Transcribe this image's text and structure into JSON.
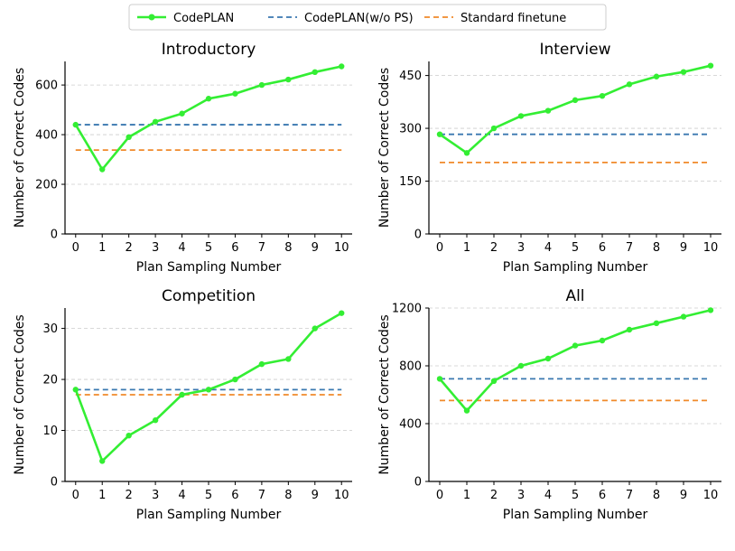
{
  "legend": {
    "placement": "top-center",
    "entries": [
      {
        "label": "CodePLAN",
        "color": "#33ee33",
        "style": "solid-marker"
      },
      {
        "label": "CodePLAN(w/o PS)",
        "color": "#3a78b0",
        "style": "dashed"
      },
      {
        "label": "Standard finetune",
        "color": "#f08a2a",
        "style": "dashed"
      }
    ]
  },
  "chart_data": [
    {
      "type": "line",
      "title": "Introductory",
      "xlabel": "Plan Sampling Number",
      "ylabel": "Number of Correct Codes",
      "x": [
        0,
        1,
        2,
        3,
        4,
        5,
        6,
        7,
        8,
        9,
        10
      ],
      "xticks": [
        "0",
        "1",
        "2",
        "3",
        "4",
        "5",
        "6",
        "7",
        "8",
        "9",
        "10"
      ],
      "yticks": [
        0,
        200,
        400,
        600
      ],
      "ylim": [
        0,
        695
      ],
      "grid": true,
      "series": [
        {
          "name": "CodePLAN",
          "values": [
            440,
            260,
            390,
            452,
            485,
            545,
            565,
            600,
            622,
            652,
            675
          ]
        },
        {
          "name": "CodePLAN(w/o PS)",
          "values": [
            440,
            440,
            440,
            440,
            440,
            440,
            440,
            440,
            440,
            440,
            440
          ]
        },
        {
          "name": "Standard finetune",
          "values": [
            338,
            338,
            338,
            338,
            338,
            338,
            338,
            338,
            338,
            338,
            338
          ]
        }
      ]
    },
    {
      "type": "line",
      "title": "Interview",
      "xlabel": "Plan Sampling Number",
      "ylabel": "Number of Correct Codes",
      "x": [
        0,
        1,
        2,
        3,
        4,
        5,
        6,
        7,
        8,
        9,
        10
      ],
      "xticks": [
        "0",
        "1",
        "2",
        "3",
        "4",
        "5",
        "6",
        "7",
        "8",
        "9",
        "10"
      ],
      "yticks": [
        0,
        150,
        300,
        450
      ],
      "ylim": [
        0,
        490
      ],
      "grid": true,
      "series": [
        {
          "name": "CodePLAN",
          "values": [
            283,
            230,
            300,
            335,
            350,
            380,
            392,
            425,
            447,
            460,
            478
          ]
        },
        {
          "name": "CodePLAN(w/o PS)",
          "values": [
            283,
            283,
            283,
            283,
            283,
            283,
            283,
            283,
            283,
            283,
            283
          ]
        },
        {
          "name": "Standard finetune",
          "values": [
            203,
            203,
            203,
            203,
            203,
            203,
            203,
            203,
            203,
            203,
            203
          ]
        }
      ]
    },
    {
      "type": "line",
      "title": "Competition",
      "xlabel": "Plan Sampling Number",
      "ylabel": "Number of Correct Codes",
      "x": [
        0,
        1,
        2,
        3,
        4,
        5,
        6,
        7,
        8,
        9,
        10
      ],
      "xticks": [
        "0",
        "1",
        "2",
        "3",
        "4",
        "5",
        "6",
        "7",
        "8",
        "9",
        "10"
      ],
      "yticks": [
        0,
        10,
        20,
        30
      ],
      "ylim": [
        0,
        34
      ],
      "grid": true,
      "series": [
        {
          "name": "CodePLAN",
          "values": [
            18,
            4,
            9,
            12,
            17,
            18,
            20,
            23,
            24,
            30,
            33
          ]
        },
        {
          "name": "CodePLAN(w/o PS)",
          "values": [
            18,
            18,
            18,
            18,
            18,
            18,
            18,
            18,
            18,
            18,
            18
          ]
        },
        {
          "name": "Standard finetune",
          "values": [
            17,
            17,
            17,
            17,
            17,
            17,
            17,
            17,
            17,
            17,
            17
          ]
        }
      ]
    },
    {
      "type": "line",
      "title": "All",
      "xlabel": "Plan Sampling Number",
      "ylabel": "Number of Correct Codes",
      "x": [
        0,
        1,
        2,
        3,
        4,
        5,
        6,
        7,
        8,
        9,
        10
      ],
      "xticks": [
        "0",
        "1",
        "2",
        "3",
        "4",
        "5",
        "6",
        "7",
        "8",
        "9",
        "10"
      ],
      "yticks": [
        0,
        400,
        800,
        1200
      ],
      "ylim": [
        0,
        1200
      ],
      "grid": true,
      "series": [
        {
          "name": "CodePLAN",
          "values": [
            710,
            490,
            695,
            800,
            850,
            940,
            975,
            1050,
            1095,
            1140,
            1185
          ]
        },
        {
          "name": "CodePLAN(w/o PS)",
          "values": [
            710,
            710,
            710,
            710,
            710,
            710,
            710,
            710,
            710,
            710,
            710
          ]
        },
        {
          "name": "Standard finetune",
          "values": [
            560,
            560,
            560,
            560,
            560,
            560,
            560,
            560,
            560,
            560,
            560
          ]
        }
      ]
    }
  ]
}
